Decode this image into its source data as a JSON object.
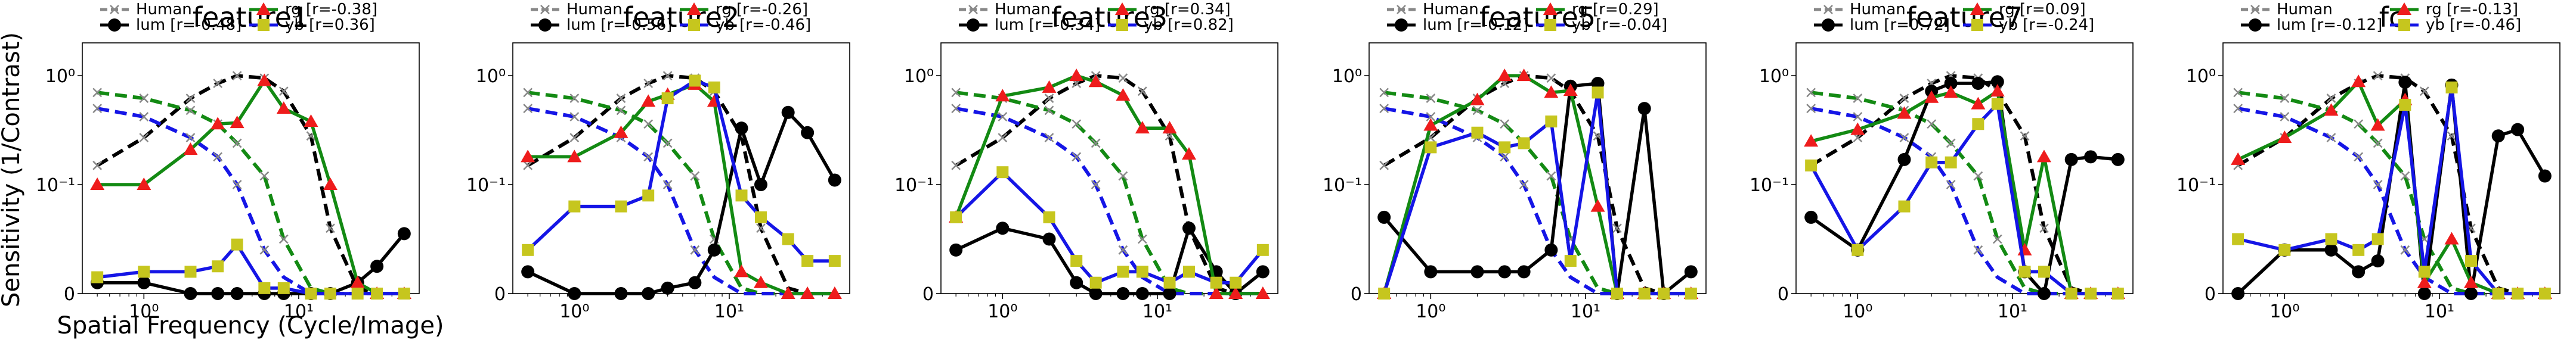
{
  "figure": {
    "ylabel": "Sensitivity (1/Contrast)",
    "xlabel": "Spatial Frequency (Cycle/Image)",
    "colors": {
      "human": "#555555",
      "lum": "#000000",
      "rg": "#138a13",
      "yb": "#1515e6",
      "rg_marker": "#ee1c1c",
      "yb_marker": "#c6c61e"
    },
    "legend_labels": {
      "human": "Human",
      "lum": "lum",
      "rg": "rg",
      "yb": "yb"
    },
    "yticks": [
      "10⁰",
      "10⁻¹",
      "0"
    ],
    "xticks": [
      "10⁰",
      "10¹"
    ]
  },
  "chart_data": [
    {
      "type": "line",
      "title": "feature1",
      "x_scale": "log",
      "y_scale": "symlog",
      "xlim": [
        0.4,
        60
      ],
      "ylim": [
        0,
        2
      ],
      "r": {
        "lum": "[r=-0.48]",
        "rg": "[r=-0.38]",
        "yb": "[r=0.36]"
      },
      "x": [
        0.5,
        1,
        2,
        3,
        4,
        6,
        8,
        12,
        16,
        24,
        32,
        48
      ],
      "human": {
        "lum": [
          0.15,
          0.27,
          0.62,
          0.85,
          1.0,
          0.95,
          0.72,
          0.28,
          0.06,
          0.005,
          0.0,
          0.0
        ],
        "rg": [
          0.7,
          0.62,
          0.48,
          0.36,
          0.24,
          0.12,
          0.05,
          0.005,
          0.0,
          0.0,
          0.0,
          0.0
        ],
        "yb": [
          0.5,
          0.42,
          0.27,
          0.18,
          0.1,
          0.04,
          0.015,
          0.0,
          0.0,
          0.0,
          0.0,
          0.0
        ]
      },
      "series": [
        {
          "name": "lum",
          "x": [
            0.5,
            1,
            2,
            3,
            4,
            6,
            8,
            12,
            16,
            24,
            32,
            48
          ],
          "values": [
            0.01,
            0.01,
            0.0,
            0.0,
            0.0,
            0.0,
            0.0,
            0.0,
            0.0,
            0.01,
            0.025,
            0.055
          ]
        },
        {
          "name": "rg",
          "x": [
            0.5,
            1,
            2,
            3,
            4,
            6,
            8,
            12,
            16,
            24,
            32,
            48
          ],
          "values": [
            0.1,
            0.1,
            0.21,
            0.36,
            0.37,
            0.9,
            0.5,
            0.38,
            0.1,
            0.01,
            0.0,
            0.0
          ]
        },
        {
          "name": "yb",
          "x": [
            0.5,
            1,
            2,
            3,
            4,
            6,
            8,
            12,
            16,
            24,
            32,
            48
          ],
          "values": [
            0.015,
            0.02,
            0.02,
            0.025,
            0.045,
            0.005,
            0.005,
            0.0,
            0.0,
            0.0,
            0.0,
            0.0
          ]
        }
      ]
    },
    {
      "type": "line",
      "title": "feature2",
      "x_scale": "log",
      "y_scale": "symlog",
      "xlim": [
        0.4,
        60
      ],
      "ylim": [
        0,
        2
      ],
      "r": {
        "lum": "[r=-0.56]",
        "rg": "[r=-0.26]",
        "yb": "[r=-0.46]"
      },
      "x": [
        0.5,
        1,
        2,
        3,
        4,
        6,
        8,
        12,
        16,
        24,
        32,
        48
      ],
      "human": {
        "lum": [
          0.15,
          0.27,
          0.62,
          0.85,
          1.0,
          0.95,
          0.72,
          0.28,
          0.06,
          0.005,
          0.0,
          0.0
        ],
        "rg": [
          0.7,
          0.62,
          0.48,
          0.36,
          0.24,
          0.12,
          0.05,
          0.005,
          0.0,
          0.0,
          0.0,
          0.0
        ],
        "yb": [
          0.5,
          0.42,
          0.27,
          0.18,
          0.1,
          0.04,
          0.015,
          0.0,
          0.0,
          0.0,
          0.0,
          0.0
        ]
      },
      "series": [
        {
          "name": "lum",
          "x": [
            0.5,
            1,
            2,
            3,
            4,
            6,
            8,
            12,
            16,
            24,
            32,
            48
          ],
          "values": [
            0.02,
            0.0,
            0.0,
            0.0,
            0.005,
            0.01,
            0.04,
            0.33,
            0.1,
            0.46,
            0.3,
            0.11
          ]
        },
        {
          "name": "rg",
          "x": [
            0.5,
            1,
            2,
            3,
            4,
            6,
            8,
            12,
            16,
            24,
            32,
            48
          ],
          "values": [
            0.18,
            0.18,
            0.3,
            0.58,
            0.67,
            0.83,
            0.58,
            0.02,
            0.01,
            0.0,
            0.0,
            0.0
          ]
        },
        {
          "name": "yb",
          "x": [
            0.5,
            1,
            2,
            3,
            4,
            6,
            8,
            12,
            16,
            24,
            32,
            48
          ],
          "values": [
            0.04,
            0.08,
            0.08,
            0.09,
            0.62,
            0.9,
            0.78,
            0.09,
            0.07,
            0.05,
            0.03,
            0.03
          ]
        }
      ]
    },
    {
      "type": "line",
      "title": "feature3",
      "x_scale": "log",
      "y_scale": "symlog",
      "xlim": [
        0.4,
        60
      ],
      "ylim": [
        0,
        2
      ],
      "r": {
        "lum": "[r=-0.34]",
        "rg": "[r=0.34]",
        "yb": "[r=0.82]"
      },
      "x": [
        0.5,
        1,
        2,
        3,
        4,
        6,
        8,
        12,
        16,
        24,
        32,
        48
      ],
      "human": {
        "lum": [
          0.15,
          0.27,
          0.62,
          0.85,
          1.0,
          0.95,
          0.72,
          0.28,
          0.06,
          0.005,
          0.0,
          0.0
        ],
        "rg": [
          0.7,
          0.62,
          0.48,
          0.36,
          0.24,
          0.12,
          0.05,
          0.005,
          0.0,
          0.0,
          0.0,
          0.0
        ],
        "yb": [
          0.5,
          0.42,
          0.27,
          0.18,
          0.1,
          0.04,
          0.015,
          0.0,
          0.0,
          0.0,
          0.0,
          0.0
        ]
      },
      "series": [
        {
          "name": "lum",
          "x": [
            0.5,
            1,
            2,
            3,
            4,
            6,
            8,
            12,
            16,
            24,
            32,
            48
          ],
          "values": [
            0.04,
            0.06,
            0.05,
            0.01,
            0.0,
            0.0,
            0.0,
            0.0,
            0.06,
            0.02,
            0.0,
            0.02
          ]
        },
        {
          "name": "rg",
          "x": [
            0.5,
            1,
            2,
            3,
            4,
            6,
            8,
            12,
            16,
            24,
            32,
            48
          ],
          "values": [
            0.07,
            0.65,
            0.78,
            1.0,
            0.88,
            0.66,
            0.33,
            0.33,
            0.19,
            0.0,
            0.0,
            0.0
          ]
        },
        {
          "name": "yb",
          "x": [
            0.5,
            1,
            2,
            3,
            4,
            6,
            8,
            12,
            16,
            24,
            32,
            48
          ],
          "values": [
            0.07,
            0.13,
            0.07,
            0.03,
            0.01,
            0.02,
            0.02,
            0.01,
            0.02,
            0.01,
            0.01,
            0.04
          ]
        }
      ]
    },
    {
      "type": "line",
      "title": "feature5",
      "x_scale": "log",
      "y_scale": "symlog",
      "xlim": [
        0.4,
        60
      ],
      "ylim": [
        0,
        2
      ],
      "r": {
        "lum": "[r=-0.12]",
        "rg": "[r=0.29]",
        "yb": "[r=-0.04]"
      },
      "x": [
        0.5,
        1,
        2,
        3,
        4,
        6,
        8,
        12,
        16,
        24,
        32,
        48
      ],
      "human": {
        "lum": [
          0.15,
          0.27,
          0.62,
          0.85,
          1.0,
          0.95,
          0.72,
          0.28,
          0.06,
          0.005,
          0.0,
          0.0
        ],
        "rg": [
          0.7,
          0.62,
          0.48,
          0.36,
          0.24,
          0.12,
          0.05,
          0.005,
          0.0,
          0.0,
          0.0,
          0.0
        ],
        "yb": [
          0.5,
          0.42,
          0.27,
          0.18,
          0.1,
          0.04,
          0.015,
          0.0,
          0.0,
          0.0,
          0.0,
          0.0
        ]
      },
      "series": [
        {
          "name": "lum",
          "x": [
            0.5,
            1,
            2,
            3,
            4,
            6,
            8,
            12,
            16,
            24,
            32,
            48
          ],
          "values": [
            0.07,
            0.02,
            0.02,
            0.02,
            0.02,
            0.04,
            0.8,
            0.85,
            0.0,
            0.5,
            0.0,
            0.02
          ]
        },
        {
          "name": "rg",
          "x": [
            0.5,
            1,
            2,
            3,
            4,
            6,
            8,
            12,
            16,
            24,
            32,
            48
          ],
          "values": [
            0.0,
            0.35,
            0.6,
            1.0,
            1.0,
            0.7,
            0.73,
            0.08,
            0.0,
            0.0,
            0.0,
            0.0
          ]
        },
        {
          "name": "yb",
          "x": [
            0.5,
            1,
            2,
            3,
            4,
            6,
            8,
            12,
            16,
            24,
            32,
            48
          ],
          "values": [
            0.0,
            0.22,
            0.3,
            0.22,
            0.24,
            0.38,
            0.03,
            0.7,
            0.0,
            0.0,
            0.0,
            0.0
          ]
        }
      ]
    },
    {
      "type": "line",
      "title": "feature7",
      "x_scale": "log",
      "y_scale": "symlog",
      "xlim": [
        0.4,
        60
      ],
      "ylim": [
        0,
        2
      ],
      "r": {
        "lum": "[r=0.72]",
        "rg": "[r=0.09]",
        "yb": "[r=-0.24]"
      },
      "x": [
        0.5,
        1,
        2,
        3,
        4,
        6,
        8,
        12,
        16,
        24,
        32,
        48
      ],
      "human": {
        "lum": [
          0.15,
          0.27,
          0.62,
          0.85,
          1.0,
          0.95,
          0.72,
          0.28,
          0.06,
          0.005,
          0.0,
          0.0
        ],
        "rg": [
          0.7,
          0.62,
          0.48,
          0.36,
          0.24,
          0.12,
          0.05,
          0.005,
          0.0,
          0.0,
          0.0,
          0.0
        ],
        "yb": [
          0.5,
          0.42,
          0.27,
          0.18,
          0.1,
          0.04,
          0.015,
          0.0,
          0.0,
          0.0,
          0.0,
          0.0
        ]
      },
      "series": [
        {
          "name": "lum",
          "x": [
            0.5,
            1,
            2,
            3,
            4,
            6,
            8,
            12,
            16,
            24,
            32,
            48
          ],
          "values": [
            0.07,
            0.04,
            0.17,
            0.72,
            0.85,
            0.85,
            0.88,
            0.02,
            0.0,
            0.17,
            0.18,
            0.17
          ]
        },
        {
          "name": "rg",
          "x": [
            0.5,
            1,
            2,
            3,
            4,
            6,
            8,
            12,
            16,
            24,
            32,
            48
          ],
          "values": [
            0.25,
            0.32,
            0.45,
            0.63,
            0.7,
            0.55,
            0.72,
            0.04,
            0.18,
            0.0,
            0.0,
            0.0
          ]
        },
        {
          "name": "yb",
          "x": [
            0.5,
            1,
            2,
            3,
            4,
            6,
            8,
            12,
            16,
            24,
            32,
            48
          ],
          "values": [
            0.15,
            0.04,
            0.08,
            0.16,
            0.16,
            0.36,
            0.55,
            0.02,
            0.02,
            0.0,
            0.0,
            0.0
          ]
        }
      ]
    },
    {
      "type": "line",
      "title": "fc",
      "x_scale": "log",
      "y_scale": "symlog",
      "xlim": [
        0.4,
        60
      ],
      "ylim": [
        0,
        2
      ],
      "r": {
        "lum": "[r=-0.12]",
        "rg": "[r=-0.13]",
        "yb": "[r=-0.46]"
      },
      "x": [
        0.5,
        1,
        2,
        3,
        4,
        6,
        8,
        12,
        16,
        24,
        32,
        48
      ],
      "human": {
        "lum": [
          0.15,
          0.27,
          0.62,
          0.85,
          1.0,
          0.95,
          0.72,
          0.28,
          0.06,
          0.005,
          0.0,
          0.0
        ],
        "rg": [
          0.7,
          0.62,
          0.48,
          0.36,
          0.24,
          0.12,
          0.05,
          0.005,
          0.0,
          0.0,
          0.0,
          0.0
        ],
        "yb": [
          0.5,
          0.42,
          0.27,
          0.18,
          0.1,
          0.04,
          0.015,
          0.0,
          0.0,
          0.0,
          0.0,
          0.0
        ]
      },
      "series": [
        {
          "name": "lum",
          "x": [
            0.5,
            1,
            2,
            3,
            4,
            6,
            8,
            12,
            16,
            24,
            32,
            48
          ],
          "values": [
            0.0,
            0.04,
            0.04,
            0.02,
            0.03,
            0.87,
            0.0,
            0.82,
            0.0,
            0.28,
            0.32,
            0.12
          ]
        },
        {
          "name": "rg",
          "x": [
            0.5,
            1,
            2,
            3,
            4,
            6,
            8,
            12,
            16,
            24,
            32,
            48
          ],
          "values": [
            0.17,
            0.27,
            0.48,
            0.88,
            0.35,
            0.6,
            0.01,
            0.05,
            0.01,
            0.0,
            0.0,
            0.0
          ]
        },
        {
          "name": "yb",
          "x": [
            0.5,
            1,
            2,
            3,
            4,
            6,
            8,
            12,
            16,
            24,
            32,
            48
          ],
          "values": [
            0.05,
            0.04,
            0.05,
            0.04,
            0.05,
            0.54,
            0.02,
            0.78,
            0.03,
            0.0,
            0.0,
            0.0
          ]
        }
      ]
    }
  ]
}
